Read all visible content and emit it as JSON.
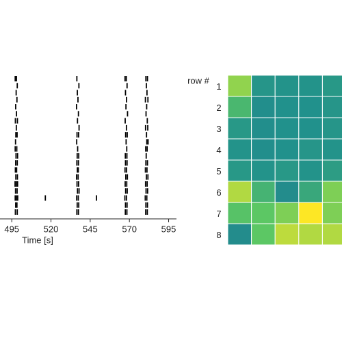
{
  "chart_data": [
    {
      "type": "raster",
      "x_axis_label": "Time [s]",
      "xlim": [
        487.5,
        600
      ],
      "xticks": [
        495,
        520,
        545,
        570,
        595
      ],
      "color": "#000000",
      "trains": [
        [
          497.2,
          498.0,
          536.5,
          567.2,
          568.0,
          580.5,
          581.5
        ],
        [
          498.5,
          537.8,
          568.5,
          580.8
        ],
        [
          497.8,
          536.8,
          567.5,
          581.2
        ],
        [
          498.3,
          537.2,
          568.2,
          580.2,
          581.8
        ],
        [
          497.5,
          536.3,
          567.8,
          581.0
        ],
        [
          498.0,
          537.5,
          568.8,
          580.6
        ],
        [
          497.3,
          498.6,
          536.9,
          567.3,
          581.4
        ],
        [
          497.9,
          537.9,
          568.1,
          580.3,
          581.7
        ],
        [
          497.6,
          498.4,
          536.6,
          537.6,
          567.6,
          568.6,
          580.9
        ],
        [
          497.4,
          536.4,
          567.9,
          581.1,
          581.9
        ],
        [
          497.2,
          498.2,
          537.0,
          568.3,
          580.4,
          581.3
        ],
        [
          497.7,
          498.7,
          536.7,
          537.7,
          567.4,
          568.4,
          580.7
        ],
        [
          497.5,
          498.5,
          536.5,
          537.5,
          567.5,
          568.5,
          580.5,
          581.5
        ],
        [
          497.3,
          498.1,
          536.8,
          537.4,
          567.2,
          568.2,
          580.2,
          581.2
        ],
        [
          497.6,
          498.6,
          536.3,
          537.3,
          567.7,
          568.7,
          580.8,
          581.8
        ],
        [
          497.1,
          497.9,
          498.7,
          536.6,
          537.6,
          567.3,
          568.3,
          580.3,
          581.3
        ],
        [
          497.4,
          498.4,
          536.9,
          537.9,
          567.6,
          568.6,
          580.6,
          581.6
        ],
        [
          497.2,
          498.0,
          498.8,
          516.4,
          536.4,
          537.4,
          549.0,
          567.1,
          568.1,
          580.1,
          581.1
        ],
        [
          497.5,
          498.3,
          536.7,
          537.7,
          567.5,
          568.5,
          580.5,
          581.5
        ],
        [
          497.3,
          498.5,
          536.5,
          537.5,
          567.4,
          568.4,
          580.4,
          581.4
        ]
      ]
    },
    {
      "type": "heatmap",
      "y_axis_label": "row #",
      "yticks": [
        1,
        2,
        3,
        4,
        5,
        6,
        7,
        8
      ],
      "colormap": "viridis",
      "zlim": [
        0,
        1
      ],
      "values": [
        [
          0.83,
          0.52,
          0.51,
          0.51,
          0.53
        ],
        [
          0.67,
          0.49,
          0.5,
          0.5,
          0.52
        ],
        [
          0.53,
          0.49,
          0.5,
          0.5,
          0.52
        ],
        [
          0.51,
          0.49,
          0.5,
          0.52,
          0.51
        ],
        [
          0.53,
          0.51,
          0.53,
          0.51,
          0.55
        ],
        [
          0.88,
          0.65,
          0.48,
          0.6,
          0.8
        ],
        [
          0.72,
          0.74,
          0.8,
          1.0,
          0.8
        ],
        [
          0.48,
          0.74,
          0.9,
          0.88,
          0.88
        ]
      ]
    }
  ]
}
